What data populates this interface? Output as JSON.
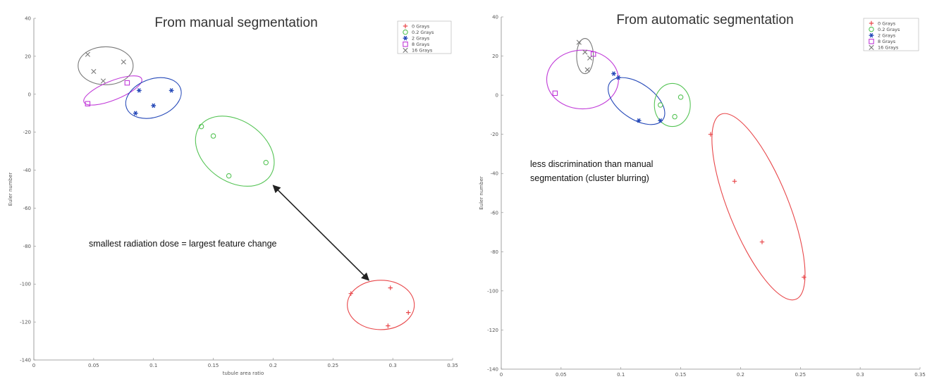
{
  "chart_data": [
    {
      "type": "scatter",
      "title": "From manual segmentation",
      "xlabel": "tubule area ratio",
      "ylabel": "Euler number",
      "xlim": [
        0,
        0.35
      ],
      "ylim": [
        -140,
        40
      ],
      "x_ticks": [
        "0",
        "0.05",
        "0.1",
        "0.15",
        "0.2",
        "0.25",
        "0.3",
        "0.35"
      ],
      "y_ticks": [
        "40",
        "20",
        "0",
        "-20",
        "-40",
        "-60",
        "-80",
        "-100",
        "-120",
        "-140"
      ],
      "grid": false,
      "legend_position": "top-right",
      "series": [
        {
          "name": "0 Grays",
          "marker": "+",
          "color": "#e8474a",
          "points": [
            {
              "x": 0.265,
              "y": -105
            },
            {
              "x": 0.298,
              "y": -102
            },
            {
              "x": 0.313,
              "y": -115
            },
            {
              "x": 0.296,
              "y": -122
            }
          ]
        },
        {
          "name": "0.2 Grays",
          "marker": "o",
          "color": "#56c456",
          "points": [
            {
              "x": 0.14,
              "y": -17
            },
            {
              "x": 0.15,
              "y": -22
            },
            {
              "x": 0.163,
              "y": -43
            },
            {
              "x": 0.194,
              "y": -36
            }
          ]
        },
        {
          "name": "2 Grays",
          "marker": "*",
          "color": "#2448b8",
          "points": [
            {
              "x": 0.088,
              "y": 2
            },
            {
              "x": 0.115,
              "y": 2
            },
            {
              "x": 0.1,
              "y": -6
            },
            {
              "x": 0.085,
              "y": -10
            }
          ]
        },
        {
          "name": "8 Grays",
          "marker": "s",
          "color": "#c03ad8",
          "points": [
            {
              "x": 0.045,
              "y": -5
            },
            {
              "x": 0.078,
              "y": 6
            }
          ]
        },
        {
          "name": "16 Grays",
          "marker": "x",
          "color": "#7a7a7a",
          "points": [
            {
              "x": 0.045,
              "y": 21
            },
            {
              "x": 0.05,
              "y": 12
            },
            {
              "x": 0.058,
              "y": 7
            },
            {
              "x": 0.075,
              "y": 17
            }
          ]
        }
      ],
      "clusters": [
        {
          "series": "16 Grays",
          "cx": 0.06,
          "cy": 15,
          "rx": 0.023,
          "ry": 10,
          "angle": 0
        },
        {
          "series": "8 Grays",
          "cx": 0.066,
          "cy": 2,
          "rx": 0.026,
          "ry": 5,
          "angle": -22
        },
        {
          "series": "2 Grays",
          "cx": 0.1,
          "cy": -2,
          "rx": 0.024,
          "ry": 10,
          "angle": -20
        },
        {
          "series": "0.2 Grays",
          "cx": 0.168,
          "cy": -30,
          "rx": 0.036,
          "ry": 16,
          "angle": 35
        },
        {
          "series": "0 Grays",
          "cx": 0.29,
          "cy": -111,
          "rx": 0.028,
          "ry": 13,
          "angle": 0
        }
      ],
      "annotation": "smallest radiation dose = largest feature change",
      "arrow": {
        "from": {
          "x": 0.2,
          "y": -48
        },
        "to": {
          "x": 0.28,
          "y": -98
        }
      }
    },
    {
      "type": "scatter",
      "title": "From automatic segmentation",
      "xlabel": "",
      "ylabel": "Euler number",
      "xlim": [
        0,
        0.35
      ],
      "ylim": [
        -140,
        40
      ],
      "x_ticks": [
        "0",
        "0.05",
        "0.1",
        "0.15",
        "0.2",
        "0.25",
        "0.3",
        "0.35"
      ],
      "y_ticks": [
        "40",
        "20",
        "0",
        "-20",
        "-40",
        "-60",
        "-80",
        "-100",
        "-120",
        "-140"
      ],
      "grid": false,
      "legend_position": "top-right",
      "series": [
        {
          "name": "0 Grays",
          "marker": "+",
          "color": "#e8474a",
          "points": [
            {
              "x": 0.175,
              "y": -20
            },
            {
              "x": 0.195,
              "y": -44
            },
            {
              "x": 0.218,
              "y": -75
            },
            {
              "x": 0.253,
              "y": -93
            }
          ]
        },
        {
          "name": "0.2 Grays",
          "marker": "o",
          "color": "#56c456",
          "points": [
            {
              "x": 0.133,
              "y": -5
            },
            {
              "x": 0.145,
              "y": -11
            },
            {
              "x": 0.15,
              "y": -1
            }
          ]
        },
        {
          "name": "2 Grays",
          "marker": "*",
          "color": "#2448b8",
          "points": [
            {
              "x": 0.094,
              "y": 11
            },
            {
              "x": 0.098,
              "y": 9
            },
            {
              "x": 0.115,
              "y": -13
            },
            {
              "x": 0.133,
              "y": -13
            }
          ]
        },
        {
          "name": "8 Grays",
          "marker": "s",
          "color": "#c03ad8",
          "points": [
            {
              "x": 0.045,
              "y": 1
            },
            {
              "x": 0.077,
              "y": 21
            }
          ]
        },
        {
          "name": "16 Grays",
          "marker": "x",
          "color": "#7a7a7a",
          "points": [
            {
              "x": 0.065,
              "y": 27
            },
            {
              "x": 0.07,
              "y": 22
            },
            {
              "x": 0.072,
              "y": 13
            },
            {
              "x": 0.074,
              "y": 19
            }
          ]
        }
      ],
      "clusters": [
        {
          "series": "16 Grays",
          "cx": 0.07,
          "cy": 20,
          "rx": 0.007,
          "ry": 9,
          "angle": 0
        },
        {
          "series": "8 Grays",
          "cx": 0.068,
          "cy": 8,
          "rx": 0.03,
          "ry": 15,
          "angle": 0
        },
        {
          "series": "2 Grays",
          "cx": 0.113,
          "cy": -3,
          "rx": 0.027,
          "ry": 9,
          "angle": 35
        },
        {
          "series": "0.2 Grays",
          "cx": 0.143,
          "cy": -5,
          "rx": 0.015,
          "ry": 11,
          "angle": 0
        },
        {
          "series": "0 Grays",
          "cx": 0.215,
          "cy": -57,
          "rx": 0.025,
          "ry": 51,
          "angle": -22
        }
      ],
      "annotation": [
        "less discrimination than manual",
        "segmentation (cluster blurring)"
      ]
    }
  ]
}
